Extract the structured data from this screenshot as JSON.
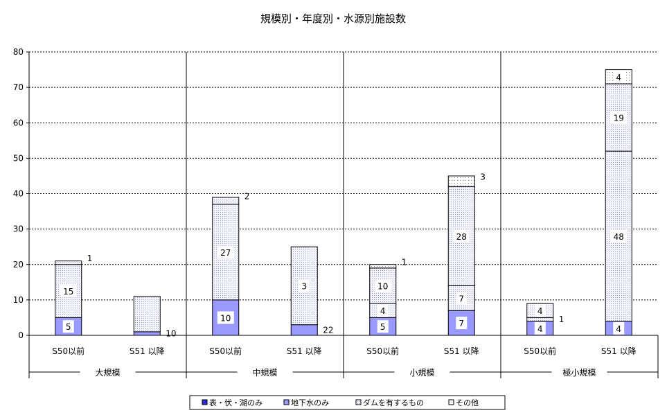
{
  "chart_data": {
    "type": "bar",
    "stacked": true,
    "title": "規模別・年度別・水源別施設数",
    "xlabel": "",
    "ylabel": "",
    "ylim": [
      0,
      80
    ],
    "yticks": [
      0,
      10,
      20,
      30,
      40,
      50,
      60,
      70,
      80
    ],
    "grid": "horizontal dotted",
    "legend_position": "bottom",
    "groups": [
      {
        "name": "大規模",
        "categories": [
          "S50以前",
          "S51 以降"
        ]
      },
      {
        "name": "中規模",
        "categories": [
          "S50以前",
          "S51 以降"
        ]
      },
      {
        "name": "小規模",
        "categories": [
          "S50以前",
          "S51 以降"
        ]
      },
      {
        "name": "極小規模",
        "categories": [
          "S50以前",
          "S51 以降"
        ]
      }
    ],
    "series": [
      {
        "name": "表・伏・湖のみ",
        "color": "#2a2ad0",
        "values": [
          0,
          0,
          0,
          0,
          0,
          0,
          0,
          0
        ]
      },
      {
        "name": "地下水のみ",
        "color": "#9999ff",
        "values": [
          5,
          1,
          10,
          3,
          5,
          7,
          4,
          4
        ]
      },
      {
        "name": "ダムを有するもの",
        "color": "#eeeefa",
        "values": [
          15,
          10,
          27,
          22,
          4,
          7,
          1,
          48
        ]
      },
      {
        "name": "その他",
        "color": "#ffffff",
        "values": [
          1,
          0,
          2,
          0,
          10,
          28,
          4,
          19
        ]
      },
      {
        "name": "",
        "color": "#ffffff",
        "values": [
          0,
          0,
          0,
          0,
          1,
          3,
          0,
          4
        ]
      }
    ],
    "data_labels": [
      [
        "5",
        "15",
        "1"
      ],
      [
        "10"
      ],
      [
        "10",
        "27",
        "2"
      ],
      [
        "22",
        "3"
      ],
      [
        "5",
        "4",
        "10",
        "1"
      ],
      [
        "7",
        "7",
        "28",
        "3"
      ],
      [
        "4",
        "1",
        "4"
      ],
      [
        "4",
        "48",
        "19",
        "4"
      ]
    ]
  }
}
